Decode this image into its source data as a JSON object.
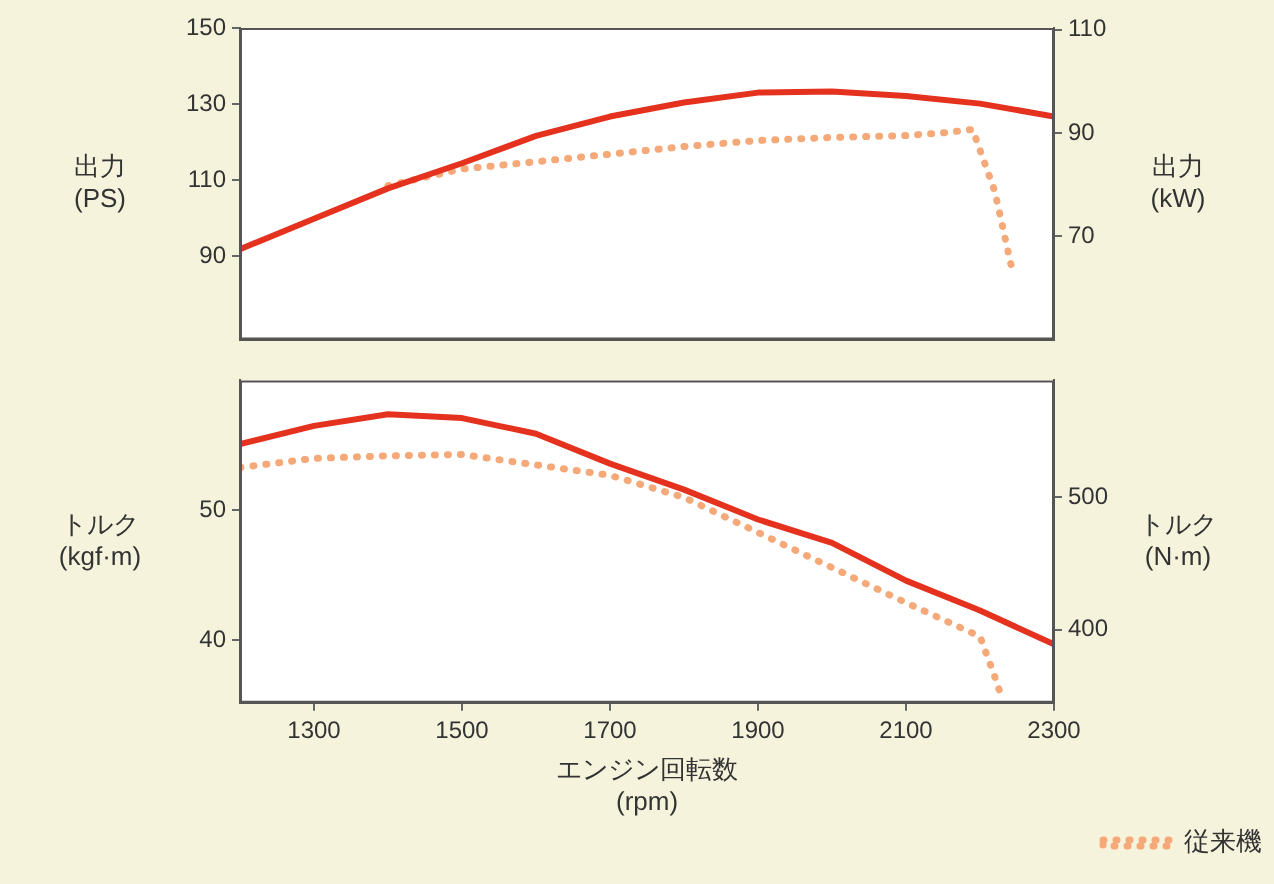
{
  "chart_data": [
    {
      "type": "line",
      "ylabel": "出力\n(PS)",
      "y2label": "出力\n(kW)",
      "xlim": [
        1200,
        2300
      ],
      "ylim": [
        68,
        150
      ],
      "yticks": [
        90,
        110,
        130,
        150
      ],
      "y2lim": [
        50.0,
        110.3
      ],
      "y2ticks": [
        70,
        90,
        110
      ],
      "tick_labels": "y",
      "grid": false,
      "legend": false,
      "series": [
        {
          "color": "#e5321f",
          "line_style": "solid",
          "x": [
            1200,
            1300,
            1400,
            1500,
            1600,
            1700,
            1800,
            1900,
            2000,
            2100,
            2200,
            2300
          ],
          "values": [
            91.8,
            99.8,
            107.8,
            114.4,
            121.6,
            126.7,
            130.4,
            133,
            133.3,
            132.1,
            130.1,
            126.7
          ]
        },
        {
          "color": "#f5a878",
          "line_style": "dotted",
          "x": [
            1400,
            1500,
            1600,
            1700,
            1800,
            1900,
            2000,
            2100,
            2150,
            2190,
            2220,
            2243
          ],
          "values": [
            108.5,
            112.9,
            114.8,
            116.8,
            118.8,
            120.4,
            121.2,
            121.7,
            122.4,
            123.3,
            107,
            86.7
          ]
        }
      ]
    },
    {
      "type": "line",
      "xlabel": "エンジン回転数\n(rpm)",
      "ylabel": "トルク\n(kgf·m)",
      "y2label": "トルク\n(N·m)",
      "xlim": [
        1200,
        2300
      ],
      "xticks": [
        1300,
        1500,
        1700,
        1900,
        2100,
        2300
      ],
      "ylim": [
        35.2,
        60
      ],
      "yticks": [
        40,
        50
      ],
      "y2lim": [
        345,
        588
      ],
      "y2ticks": [
        400,
        500
      ],
      "grid": false,
      "legend": "bottom right",
      "series": [
        {
          "color": "#e5321f",
          "line_style": "solid",
          "x": [
            1200,
            1300,
            1400,
            1500,
            1600,
            1700,
            1800,
            1900,
            2000,
            2100,
            2200,
            2300
          ],
          "values": [
            55.1,
            56.5,
            57.4,
            57.1,
            55.9,
            53.6,
            51.6,
            49.3,
            47.5,
            44.6,
            42.3,
            39.7
          ]
        },
        {
          "name": "従来機",
          "color": "#f5a878",
          "line_style": "dotted",
          "x": [
            1200,
            1300,
            1400,
            1500,
            1600,
            1700,
            1800,
            1900,
            2000,
            2100,
            2200,
            2220,
            2230
          ],
          "values": [
            53.3,
            54.0,
            54.2,
            54.3,
            53.5,
            52.7,
            51.0,
            48.3,
            45.6,
            42.9,
            40.3,
            37.2,
            35.5
          ]
        }
      ]
    }
  ]
}
